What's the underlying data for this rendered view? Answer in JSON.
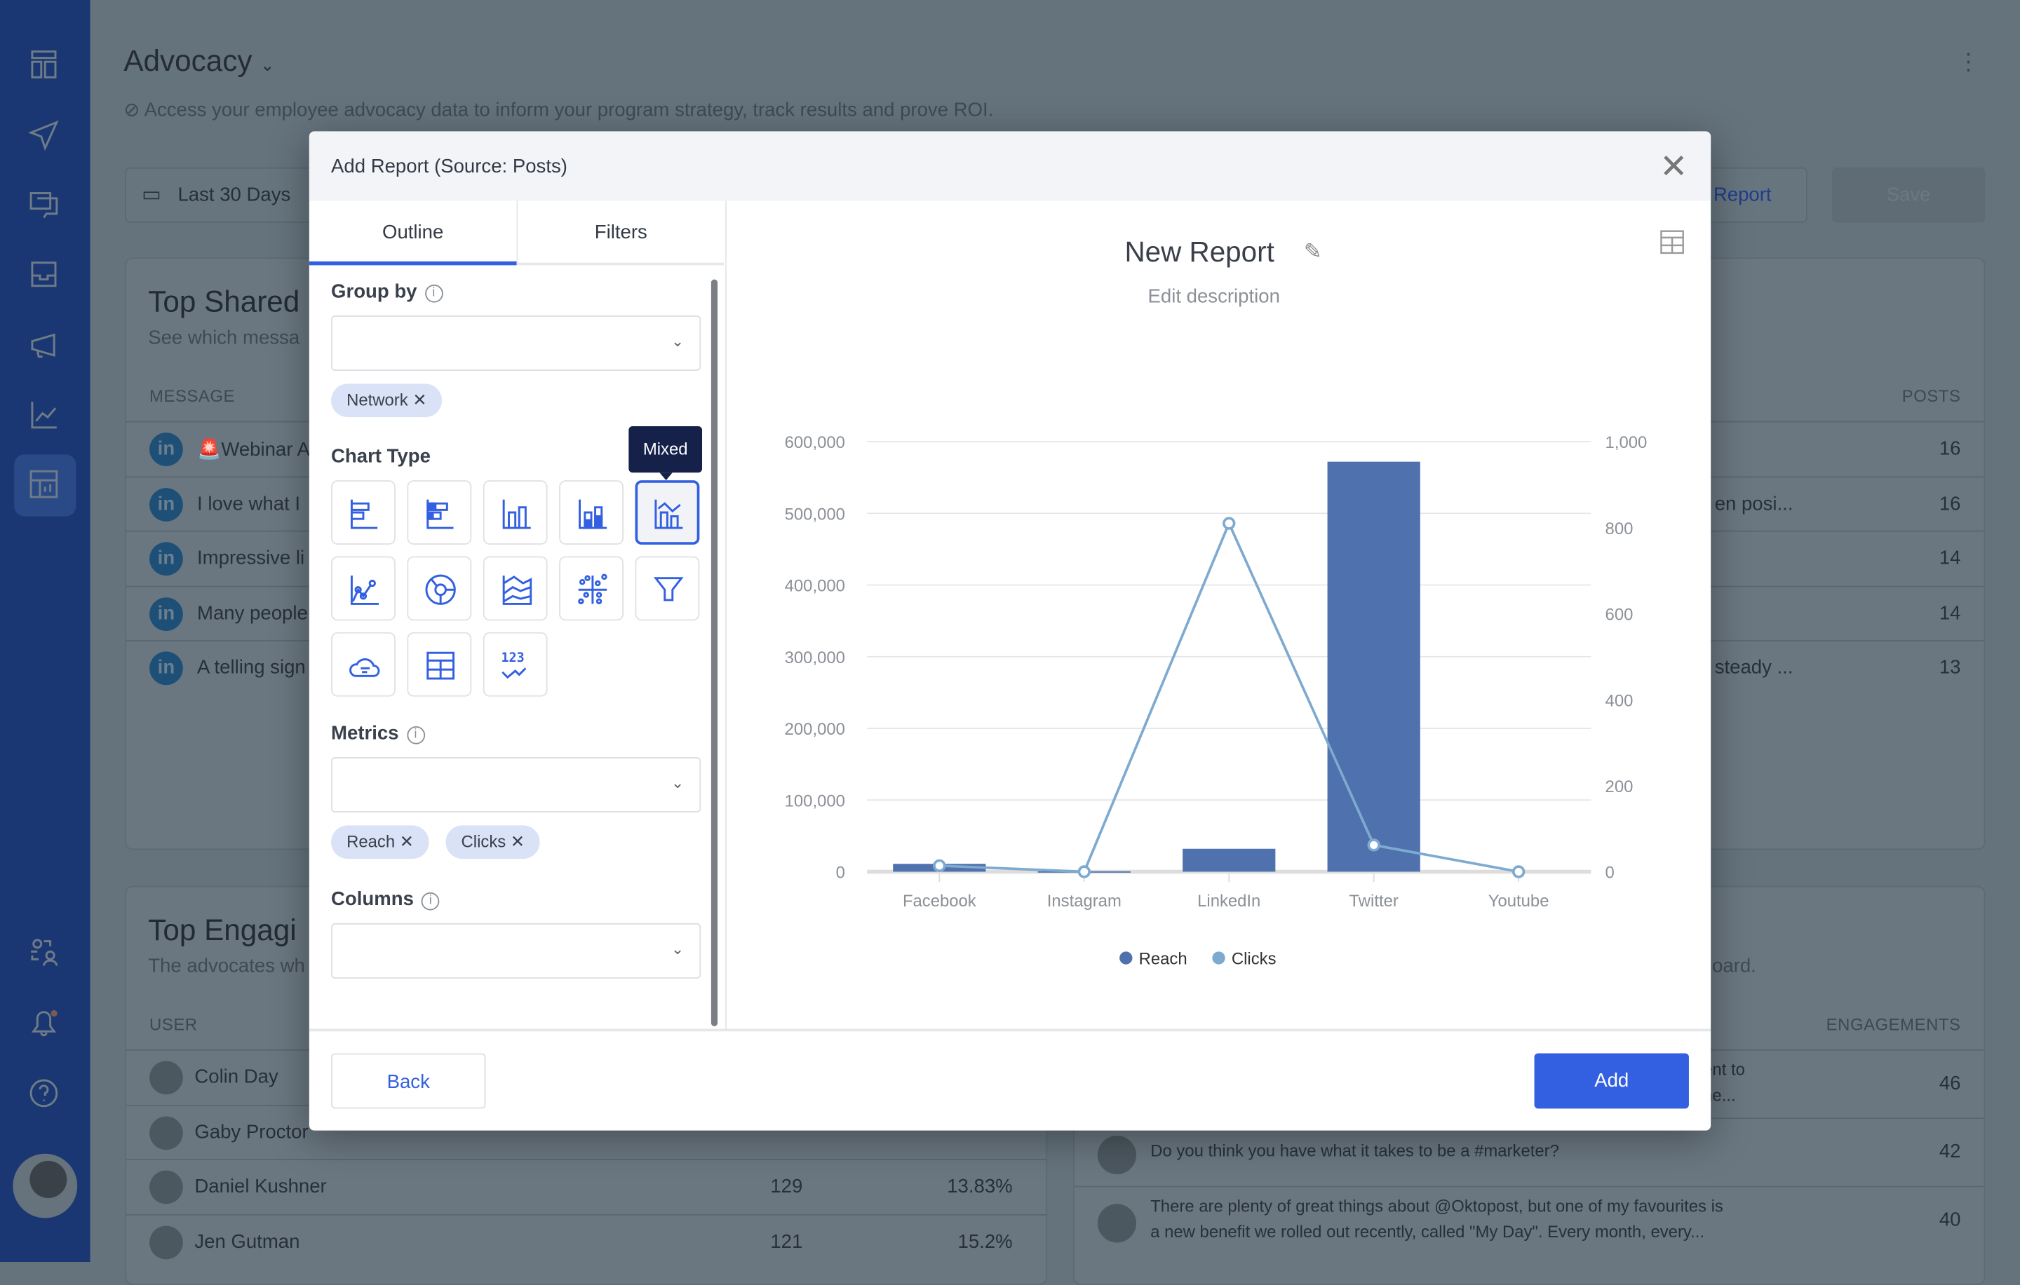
{
  "page": {
    "title": "Advocacy",
    "subtitle": "Access your employee advocacy data to inform your program strategy, track results and prove ROI.",
    "date_range": "Last 30 Days",
    "report_btn": "Report",
    "save_btn": "Save"
  },
  "card_shared": {
    "title": "Top Shared",
    "subtitle": "See which messa",
    "col_message": "MESSAGE",
    "col_posts": "POSTS",
    "rows": [
      {
        "msg": "🚨Webinar A",
        "tail": "",
        "posts": "16"
      },
      {
        "msg": "I love what I",
        "tail": "en posi...",
        "posts": "16"
      },
      {
        "msg": "Impressive li",
        "tail": "",
        "posts": "14"
      },
      {
        "msg": "Many people",
        "tail": "",
        "posts": "14"
      },
      {
        "msg": "A telling sign",
        "tail": "steady ...",
        "posts": "13"
      }
    ]
  },
  "card_engaging": {
    "title": "Top Engagi",
    "subtitle": "The advocates wh",
    "col_user": "USER",
    "rows": [
      {
        "name": "Colin Day",
        "a": "",
        "b": ""
      },
      {
        "name": "Gaby Proctor",
        "a": "",
        "b": ""
      },
      {
        "name": "Daniel Kushner",
        "a": "129",
        "b": "13.83%"
      },
      {
        "name": "Jen Gutman",
        "a": "121",
        "b": "15.2%"
      }
    ]
  },
  "card_posts": {
    "subtitle_tail": "oard.",
    "col_eng": "ENGAGEMENTS",
    "rows": [
      {
        "l1": "ent to",
        "l2": "ne...",
        "n": "46"
      },
      {
        "l1": "Do you think you have what it takes to be a #marketer?",
        "l2": "",
        "n": "42"
      },
      {
        "l1": "There are plenty of great things about @Oktopost, but one of my favourites is",
        "l2": "a new benefit we rolled out recently, called \"My Day\". Every month, every...",
        "n": "40"
      }
    ]
  },
  "modal": {
    "title": "Add Report (Source: Posts)",
    "tabs": [
      "Outline",
      "Filters"
    ],
    "group_by_label": "Group by",
    "group_chips": [
      "Network"
    ],
    "chart_type_label": "Chart Type",
    "tooltip": "Mixed",
    "chart_types": [
      "bar-horizontal",
      "bar-horizontal-stacked",
      "column",
      "column-stacked",
      "mixed",
      "line",
      "donut",
      "area",
      "scatter",
      "funnel",
      "word-cloud",
      "table",
      "kpi"
    ],
    "selected_chart_type": "mixed",
    "metrics_label": "Metrics",
    "metric_chips": [
      "Reach",
      "Clicks"
    ],
    "columns_label": "Columns",
    "back": "Back",
    "add": "Add",
    "report_title": "New Report",
    "report_desc": "Edit description"
  },
  "colors": {
    "accent": "#3360e0",
    "reach": "#4f72ae",
    "clicks": "#7eaad0"
  },
  "chart_data": {
    "type": "mixed",
    "categories": [
      "Facebook",
      "Instagram",
      "LinkedIn",
      "Twitter",
      "Youtube"
    ],
    "series": [
      {
        "name": "Reach",
        "type": "bar",
        "axis": "left",
        "values": [
          11000,
          500,
          32000,
          572000,
          0
        ]
      },
      {
        "name": "Clicks",
        "type": "line",
        "axis": "right",
        "values": [
          14,
          0,
          810,
          62,
          0
        ]
      }
    ],
    "ylim_left": [
      0,
      600000
    ],
    "ylim_right": [
      0,
      1000
    ],
    "yticks_left": [
      "0",
      "100,000",
      "200,000",
      "300,000",
      "400,000",
      "500,000",
      "600,000"
    ],
    "yticks_right": [
      "0",
      "200",
      "400",
      "600",
      "800",
      "1,000"
    ],
    "grid": true,
    "legend": "bottom"
  }
}
